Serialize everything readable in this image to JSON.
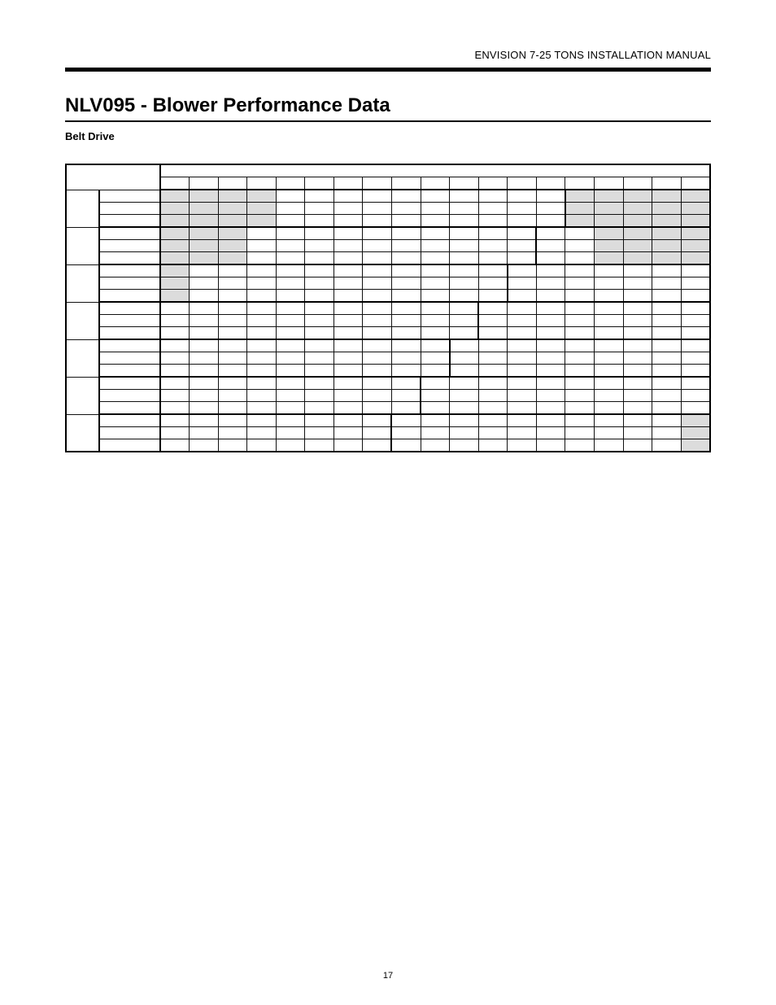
{
  "header": "ENVISION 7-25 TONS INSTALLATION MANUAL",
  "title": "NLV095 - Blower Performance Data",
  "subtitle": "Belt Drive",
  "pageNumber": "17",
  "table": {
    "topHeaderSpanLabel": "",
    "secondHeaderCols": [
      "",
      "",
      "",
      "",
      "",
      "",
      "",
      "",
      "",
      "",
      "",
      "",
      "",
      "",
      "",
      "",
      "",
      "",
      ""
    ],
    "groups": [
      {
        "leftLabel": "",
        "subrows": [
          "",
          "",
          ""
        ],
        "shadedCols1": [
          0,
          1,
          2,
          3
        ],
        "shadedCols2": [
          14,
          15,
          16,
          17,
          18
        ],
        "stepThickRightAt": 13
      },
      {
        "leftLabel": "",
        "subrows": [
          "",
          "",
          ""
        ],
        "shadedCols1": [
          0,
          1,
          2
        ],
        "shadedCols2": [
          15,
          16,
          17,
          18
        ],
        "stepThickRightAt": 12
      },
      {
        "leftLabel": "",
        "subrows": [
          "",
          "",
          ""
        ],
        "shadedCols1": [
          0
        ],
        "shadedCols2": [],
        "stepThickRightAt": 11
      },
      {
        "leftLabel": "",
        "subrows": [
          "",
          "",
          ""
        ],
        "shadedCols1": [],
        "shadedCols2": [],
        "stepThickRightAt": 10
      },
      {
        "leftLabel": "",
        "subrows": [
          "",
          "",
          ""
        ],
        "shadedCols1": [],
        "shadedCols2": [],
        "stepThickRightAt": 9
      },
      {
        "leftLabel": "",
        "subrows": [
          "",
          "",
          ""
        ],
        "shadedCols1": [],
        "shadedCols2": [],
        "stepThickRightAt": 8
      },
      {
        "leftLabel": "",
        "subrows": [
          "",
          "",
          ""
        ],
        "shadedCols1": [],
        "shadedCols2": [
          18
        ],
        "stepThickRightAt": 7
      }
    ]
  },
  "colors": {
    "shaded": "#dcdcdc",
    "border": "#000000",
    "background": "#ffffff"
  }
}
